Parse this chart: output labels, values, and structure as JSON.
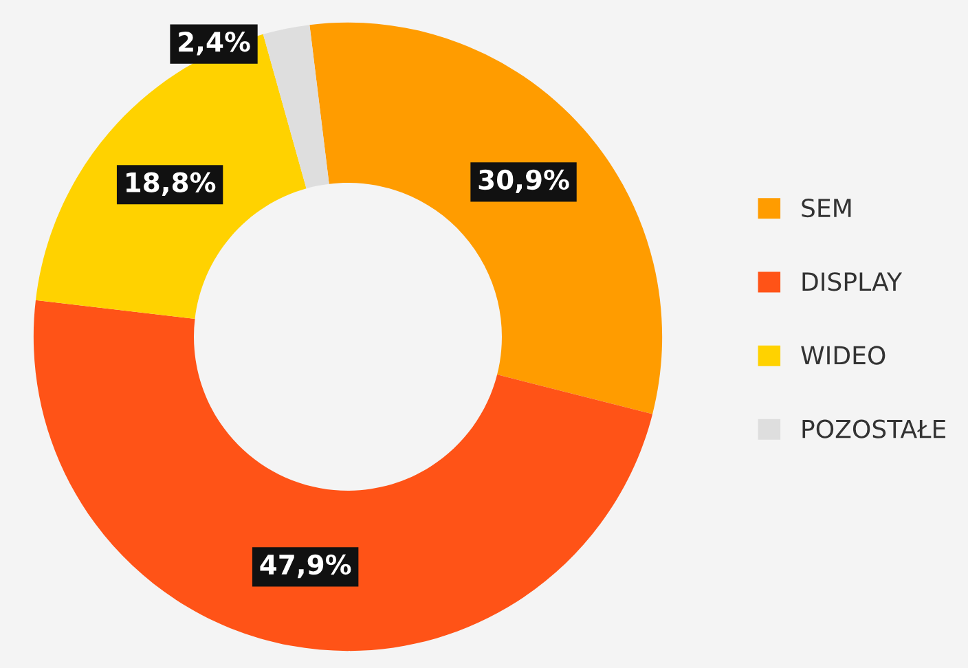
{
  "chart_data": {
    "type": "donut",
    "categories": [
      "SEM",
      "DISPLAY",
      "WIDEO",
      "POZOSTAŁE"
    ],
    "values": [
      30.9,
      47.9,
      18.8,
      2.4
    ],
    "colors": [
      "#ff9c00",
      "#ff5317",
      "#ffd200",
      "#dedede"
    ],
    "value_labels": [
      "30,9%",
      "47,9%",
      "18,8%",
      "2,4%"
    ],
    "legend": "right"
  }
}
